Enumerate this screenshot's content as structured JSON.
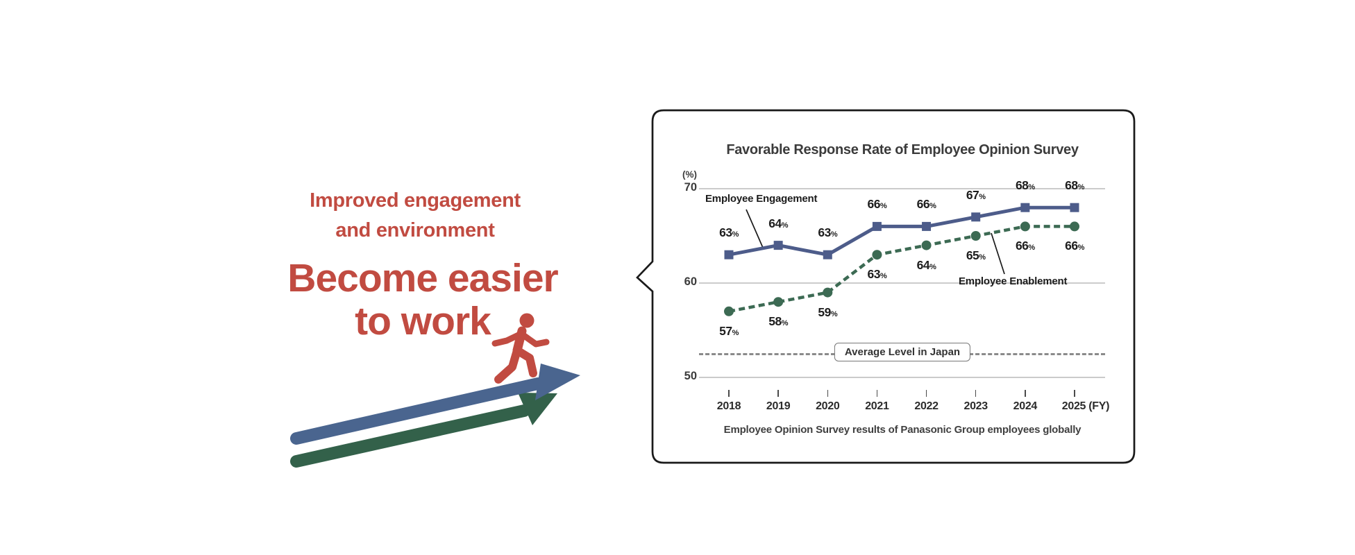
{
  "left_panel": {
    "subtitle_line1": "Improved engagement",
    "subtitle_line2": "and environment",
    "headline_line1": "Become easier",
    "headline_line2": "to work",
    "accent_color": "#c14b41",
    "arrow_blue_color": "#4a658f",
    "arrow_green_color": "#33614a"
  },
  "bubble": {
    "border_color": "#1a1a1a",
    "background_color": "#ffffff"
  },
  "chart_data": {
    "type": "line",
    "title": "Favorable Response Rate of Employee Opinion Survey",
    "unit_label": "(%)",
    "value_suffix": "%",
    "categories": [
      "2018",
      "2019",
      "2020",
      "2021",
      "2022",
      "2023",
      "2024",
      "2025"
    ],
    "x_axis_suffix": "(FY)",
    "y_gridlines": [
      70,
      60,
      50
    ],
    "ylim": [
      48,
      72
    ],
    "grid": true,
    "series": [
      {
        "name": "Employee Engagement",
        "color": "#4d5c8a",
        "line": "solid",
        "marker": "square",
        "values": [
          63,
          64,
          63,
          66,
          66,
          67,
          68,
          68
        ]
      },
      {
        "name": "Employee Enablement",
        "color": "#3c6a53",
        "line": "dashed",
        "marker": "circle",
        "values": [
          57,
          58,
          59,
          63,
          64,
          65,
          66,
          66
        ]
      }
    ],
    "reference_line": {
      "label": "Average Level in Japan",
      "value": 52.5,
      "color": "#8a8a8a"
    },
    "caption": "Employee Opinion Survey results of Panasonic Group employees globally"
  }
}
